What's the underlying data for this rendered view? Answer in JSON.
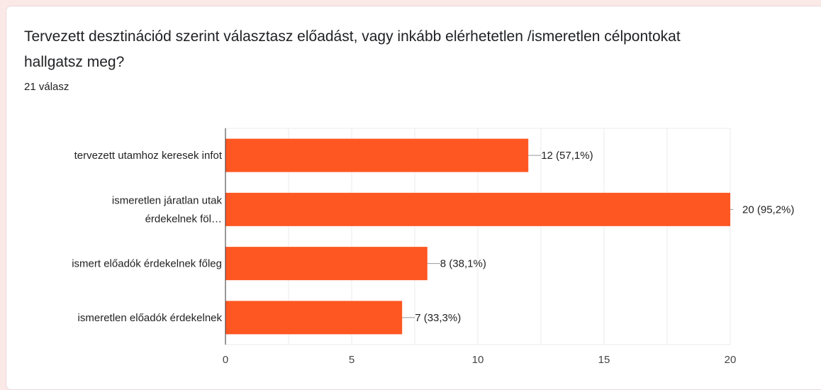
{
  "question": {
    "title": "Tervezett desztinációd szerint választasz előadást, vagy inkább elérhetetlen /ismeretlen célpontokat hallgatsz meg?",
    "response_count": "21 válasz"
  },
  "colors": {
    "bar": "#ff5722",
    "grid": "#ebebeb",
    "axis": "#333333"
  },
  "chart_data": {
    "type": "bar",
    "orientation": "horizontal",
    "categories": [
      [
        "tervezett utamhoz keresek infot"
      ],
      [
        "ismeretlen járatlan utak",
        "érdekelnek föl…"
      ],
      [
        "ismert előadók érdekelnek főleg"
      ],
      [
        "ismeretlen előadók érdekelnek"
      ]
    ],
    "values": [
      12,
      20,
      8,
      7
    ],
    "data_labels": [
      "12 (57,1%)",
      "20 (95,2%)",
      "8 (38,1%)",
      "7 (33,3%)"
    ],
    "xlim": [
      0,
      20
    ],
    "xticks": [
      0,
      5,
      10,
      15,
      20
    ],
    "tick_labels": [
      "0",
      "5",
      "10",
      "15",
      "20"
    ],
    "minor_grid_step": 2.5,
    "grid": true,
    "legend": "none"
  }
}
